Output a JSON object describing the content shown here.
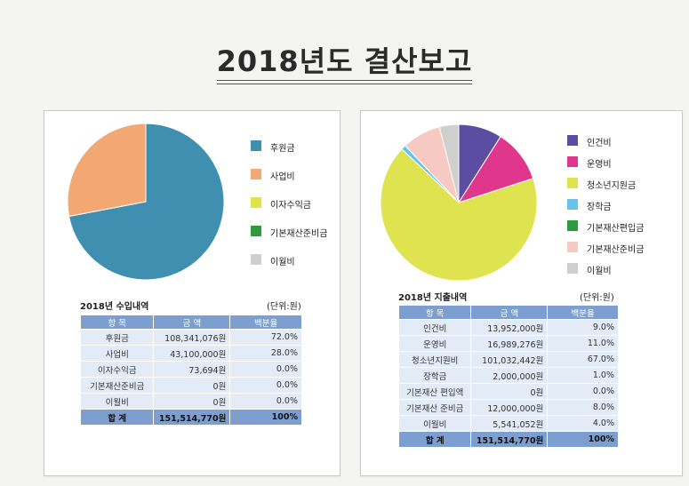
{
  "page": {
    "title": "2018년도 결산보고"
  },
  "chart_data": [
    {
      "type": "pie",
      "title": "",
      "categories": [
        "후원금",
        "사업비",
        "이자수익금",
        "기본재산준비금",
        "이월비"
      ],
      "values": [
        72.0,
        28.0,
        0.0,
        0.0,
        0.0
      ],
      "colors": [
        "#3f8fb0",
        "#f3a874",
        "#dfe34f",
        "#2e9a3e",
        "#cfcfcf"
      ],
      "legend": "right"
    },
    {
      "type": "pie",
      "title": "",
      "categories": [
        "인건비",
        "운영비",
        "청소년지원금",
        "장학금",
        "기본재산편입금",
        "기본재산준비금",
        "이월비"
      ],
      "values": [
        9.0,
        11.0,
        67.0,
        1.0,
        0.0,
        8.0,
        4.0
      ],
      "colors": [
        "#5b4ea2",
        "#e0378d",
        "#dfe34f",
        "#67c3e8",
        "#2e9a3e",
        "#f7c9c3",
        "#cfcfcf"
      ],
      "legend": "right"
    }
  ],
  "income": {
    "table_title": "2018년 수입내역",
    "unit": "(단위:원)",
    "headers": [
      "항 목",
      "금 액",
      "백분율"
    ],
    "rows": [
      [
        "후원금",
        "108,341,076원",
        "72.0%"
      ],
      [
        "사업비",
        "43,100,000원",
        "28.0%"
      ],
      [
        "이자수익금",
        "73,694원",
        "0.0%"
      ],
      [
        "기본재산준비금",
        "0원",
        "0.0%"
      ],
      [
        "이월비",
        "0원",
        "0.0%"
      ]
    ],
    "total": [
      "합 계",
      "151,514,770원",
      "100%"
    ]
  },
  "expense": {
    "table_title": "2018년 지출내역",
    "unit": "(단위:원)",
    "headers": [
      "항 목",
      "금 액",
      "백분율"
    ],
    "rows": [
      [
        "인건비",
        "13,952,000원",
        "9.0%"
      ],
      [
        "운영비",
        "16,989,276원",
        "11.0%"
      ],
      [
        "청소년지원비",
        "101,032,442원",
        "67.0%"
      ],
      [
        "장학금",
        "2,000,000원",
        "1.0%"
      ],
      [
        "기본재산 편입액",
        "0원",
        "0.0%"
      ],
      [
        "기본재산 준비금",
        "12,000,000원",
        "8.0%"
      ],
      [
        "이월비",
        "5,541,052원",
        "4.0%"
      ]
    ],
    "total": [
      "합 계",
      "151,514,770원",
      "100%"
    ]
  }
}
